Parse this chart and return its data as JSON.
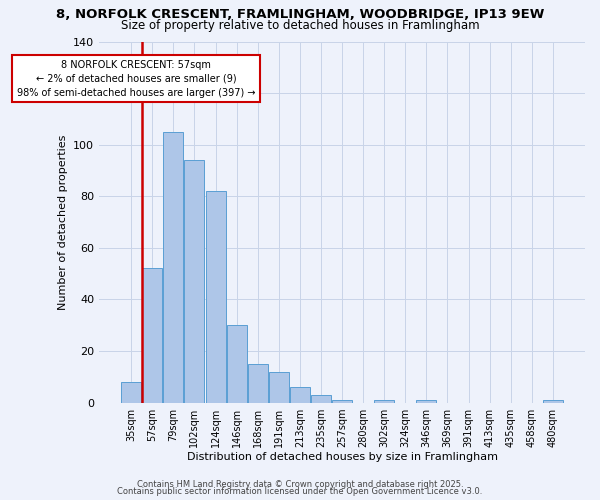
{
  "title": "8, NORFOLK CRESCENT, FRAMLINGHAM, WOODBRIDGE, IP13 9EW",
  "subtitle": "Size of property relative to detached houses in Framlingham",
  "xlabel": "Distribution of detached houses by size in Framlingham",
  "ylabel": "Number of detached properties",
  "bar_labels": [
    "35sqm",
    "57sqm",
    "79sqm",
    "102sqm",
    "124sqm",
    "146sqm",
    "168sqm",
    "191sqm",
    "213sqm",
    "235sqm",
    "257sqm",
    "280sqm",
    "302sqm",
    "324sqm",
    "346sqm",
    "369sqm",
    "391sqm",
    "413sqm",
    "435sqm",
    "458sqm",
    "480sqm"
  ],
  "bar_values": [
    8,
    52,
    105,
    94,
    82,
    30,
    15,
    12,
    6,
    3,
    1,
    0,
    1,
    0,
    1,
    0,
    0,
    0,
    0,
    0,
    1
  ],
  "bar_color": "#aec6e8",
  "bar_edge_color": "#5a9fd4",
  "red_line_index": 1,
  "annotation_title": "8 NORFOLK CRESCENT: 57sqm",
  "annotation_line1": "← 2% of detached houses are smaller (9)",
  "annotation_line2": "98% of semi-detached houses are larger (397) →",
  "annotation_box_color": "#ffffff",
  "annotation_border_color": "#cc0000",
  "red_line_color": "#cc0000",
  "ylim": [
    0,
    140
  ],
  "yticks": [
    0,
    20,
    40,
    60,
    80,
    100,
    120,
    140
  ],
  "footer1": "Contains HM Land Registry data © Crown copyright and database right 2025.",
  "footer2": "Contains public sector information licensed under the Open Government Licence v3.0.",
  "bg_color": "#eef2fb",
  "grid_color": "#c8d4e8",
  "title_fontsize": 9.5,
  "subtitle_fontsize": 8.5,
  "axis_label_fontsize": 8,
  "tick_fontsize": 7,
  "ylabel_fontsize": 8,
  "annotation_fontsize": 7,
  "footer_fontsize": 6
}
